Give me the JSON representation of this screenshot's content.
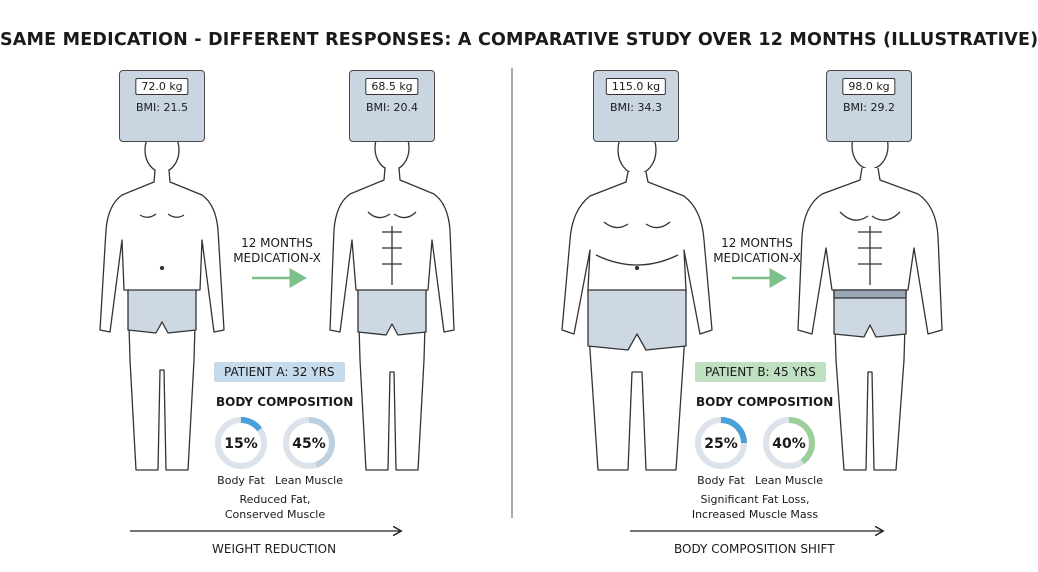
{
  "title": "SAME MEDICATION - DIFFERENT RESPONSES: A COMPARATIVE STUDY OVER 12 MONTHS (ILLUSTRATIVE)",
  "patient_a": {
    "before": {
      "weight": "72.0 kg",
      "bmi": "BMI: 21.5"
    },
    "after": {
      "weight": "68.5 kg",
      "bmi": "BMI: 20.4"
    },
    "arrow_line1": "12 MONTHS",
    "arrow_line2": "MEDICATION-X",
    "badge": "PATIENT A: 32 YRS",
    "composition_title": "BODY COMPOSITION",
    "body_fat": {
      "label": "Body Fat",
      "value": "15%",
      "fraction": 0.15
    },
    "lean_muscle": {
      "label": "Lean Muscle",
      "value": "45%",
      "fraction": 0.45
    },
    "caption_line1": "Reduced Fat,",
    "caption_line2": "Conserved Muscle",
    "bottom_label": "WEIGHT REDUCTION"
  },
  "patient_b": {
    "before": {
      "weight": "115.0 kg",
      "bmi": "BMI: 34.3"
    },
    "after": {
      "weight": "98.0 kg",
      "bmi": "BMI: 29.2"
    },
    "arrow_line1": "12 MONTHS",
    "arrow_line2": "MEDICATION-X",
    "badge": "PATIENT B: 45 YRS",
    "composition_title": "BODY COMPOSITION",
    "body_fat": {
      "label": "Body Fat",
      "value": "25%",
      "fraction": 0.25
    },
    "lean_muscle": {
      "label": "Lean Muscle",
      "value": "40%",
      "fraction": 0.4
    },
    "caption_line1": "Significant Fat Loss,",
    "caption_line2": "Increased Muscle Mass",
    "bottom_label": "BODY COMPOSITION SHIFT"
  },
  "colors": {
    "fat_ring": "#4a9fd8",
    "muscle_ring_a": "#bcd0e0",
    "muscle_ring_b": "#9ccf9c",
    "ring_track": "#dde3ea",
    "arrow": "#7dbf8a",
    "shorts": "#cdd8e3"
  }
}
